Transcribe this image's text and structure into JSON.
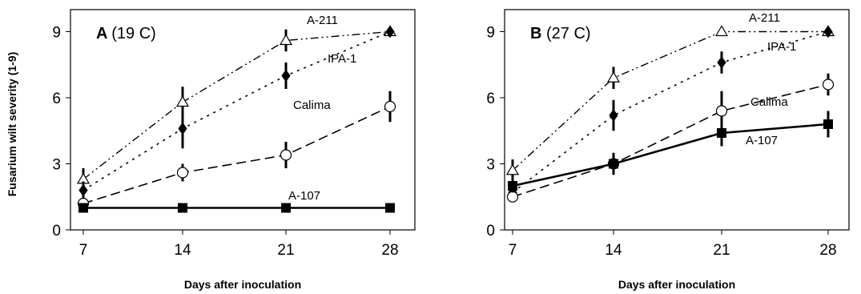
{
  "y_axis_label": "Fusarium wilt severity (1-9)",
  "chart_data": [
    {
      "type": "line",
      "panel_letter": "A",
      "condition": "(19 C)",
      "xlabel": "Days after inoculation",
      "x": [
        7,
        14,
        21,
        28
      ],
      "x_ticks": [
        "7",
        "14",
        "21",
        "28"
      ],
      "ylim": [
        0,
        10
      ],
      "y_ticks": [
        "0",
        "3",
        "6",
        "9"
      ],
      "series": [
        {
          "name": "A-211",
          "marker": "triangle-open",
          "dash": "dashdotdot",
          "values": [
            2.3,
            5.8,
            8.6,
            9.0
          ],
          "err": [
            0.5,
            0.7,
            0.5,
            0.0
          ]
        },
        {
          "name": "IPA-1",
          "marker": "diamond-filled",
          "dash": "dotted",
          "values": [
            1.8,
            4.6,
            7.0,
            9.0
          ],
          "err": [
            0.4,
            0.9,
            0.6,
            0.0
          ]
        },
        {
          "name": "Calima",
          "marker": "circle-open",
          "dash": "dashed",
          "values": [
            1.2,
            2.6,
            3.4,
            5.6
          ],
          "err": [
            0.2,
            0.4,
            0.6,
            0.7
          ]
        },
        {
          "name": "A-107",
          "marker": "square-filled",
          "dash": "solid",
          "values": [
            1.0,
            1.0,
            1.0,
            1.0
          ],
          "err": [
            0,
            0,
            0,
            0
          ]
        }
      ]
    },
    {
      "type": "line",
      "panel_letter": "B",
      "condition": "(27 C)",
      "xlabel": "Days after inoculation",
      "x": [
        7,
        14,
        21,
        28
      ],
      "x_ticks": [
        "7",
        "14",
        "21",
        "28"
      ],
      "ylim": [
        0,
        10
      ],
      "y_ticks": [
        "0",
        "3",
        "6",
        "9"
      ],
      "series": [
        {
          "name": "A-211",
          "marker": "triangle-open",
          "dash": "dashdotdot",
          "values": [
            2.7,
            6.9,
            9.0,
            9.0
          ],
          "err": [
            0.5,
            0.5,
            0.0,
            0.0
          ]
        },
        {
          "name": "IPA-1",
          "marker": "diamond-filled",
          "dash": "dotted",
          "values": [
            1.7,
            5.2,
            7.6,
            9.0
          ],
          "err": [
            0.3,
            0.7,
            0.5,
            0.0
          ]
        },
        {
          "name": "Calima",
          "marker": "circle-open",
          "dash": "dashed",
          "values": [
            1.5,
            3.0,
            5.4,
            6.6
          ],
          "err": [
            0.2,
            0.5,
            0.9,
            0.5
          ]
        },
        {
          "name": "A-107",
          "marker": "square-filled",
          "dash": "solid",
          "values": [
            2.0,
            3.0,
            4.4,
            4.8
          ],
          "err": [
            0.3,
            0.4,
            0.6,
            0.6
          ]
        }
      ]
    }
  ]
}
